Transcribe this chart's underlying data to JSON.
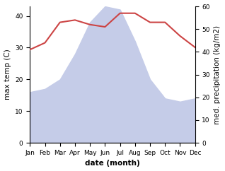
{
  "months": [
    "Jan",
    "Feb",
    "Mar",
    "Apr",
    "May",
    "Jun",
    "Jul",
    "Aug",
    "Sep",
    "Oct",
    "Nov",
    "Dec"
  ],
  "month_indices": [
    0,
    1,
    2,
    3,
    4,
    5,
    6,
    7,
    8,
    9,
    10,
    11
  ],
  "rainfall": [
    16,
    17,
    20,
    28,
    38,
    43,
    42,
    32,
    20,
    14,
    13,
    14
  ],
  "temperature": [
    41,
    44,
    53,
    54,
    52,
    51,
    57,
    57,
    53,
    53,
    47,
    42
  ],
  "rain_fill_color": "#c5cce8",
  "temp_color": "#cc4444",
  "ylabel_left": "max temp (C)",
  "ylabel_right": "med. precipitation (kg/m2)",
  "xlabel": "date (month)",
  "ylim_left": [
    0,
    43
  ],
  "ylim_right": [
    0,
    60
  ],
  "yticks_left": [
    0,
    10,
    20,
    30,
    40
  ],
  "yticks_right": [
    0,
    10,
    20,
    30,
    40,
    50,
    60
  ],
  "bg_color": "#ffffff",
  "label_fontsize": 7.5,
  "tick_fontsize": 6.5
}
